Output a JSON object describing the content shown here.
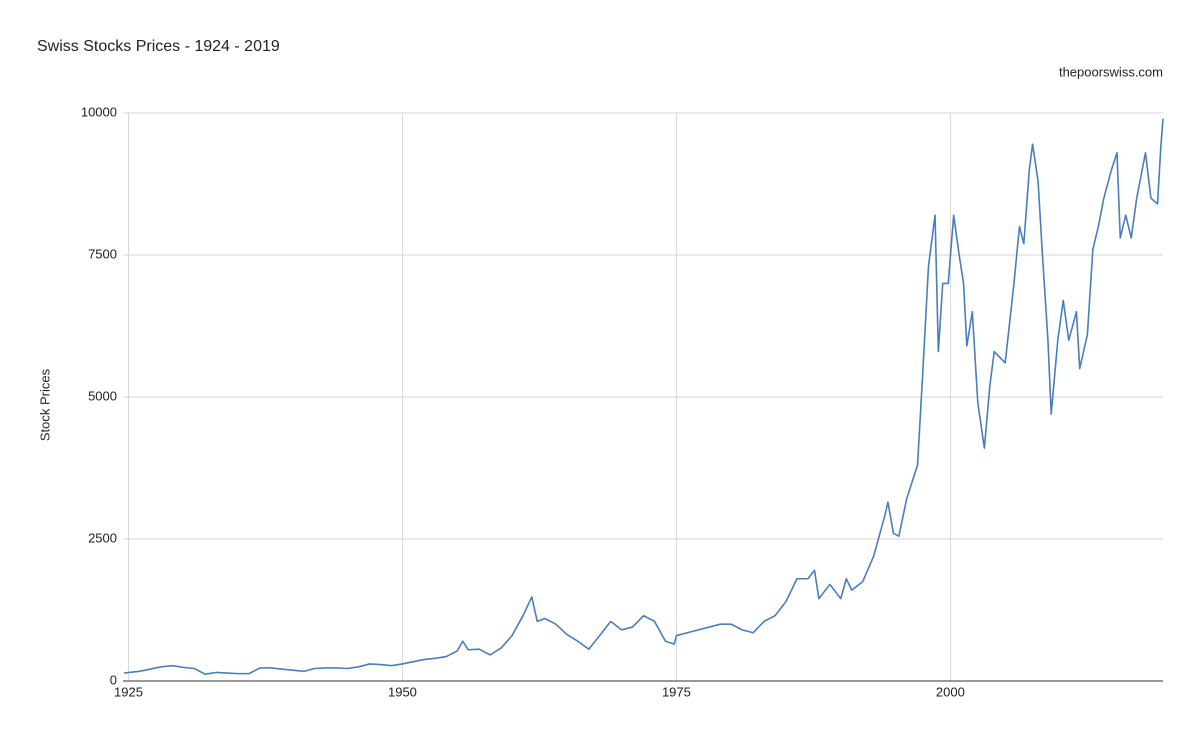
{
  "chart_data": {
    "type": "line",
    "title": "Swiss Stocks Prices - 1924 - 2019",
    "subtitle": "thepoorswiss.com",
    "y_label": "Stock Prices",
    "xlim": [
      1924.5,
      2019.4
    ],
    "xticks": [
      1925,
      1950,
      1975,
      2000
    ],
    "ylim": [
      0,
      10000
    ],
    "yticks": [
      0,
      2500,
      5000,
      7500,
      10000
    ],
    "grid": true,
    "series": [
      {
        "color": "#4a7ebb",
        "x": [
          1924.6,
          1926,
          1928,
          1929,
          1930,
          1931,
          1932,
          1933,
          1934,
          1935,
          1936,
          1937,
          1938,
          1939,
          1940,
          1941,
          1942,
          1943,
          1944,
          1945,
          1946,
          1947,
          1948,
          1949,
          1950,
          1951,
          1952,
          1953,
          1954,
          1955,
          1955.5,
          1956,
          1957,
          1958,
          1959,
          1960,
          1961,
          1961.8,
          1962.3,
          1963,
          1964,
          1965,
          1966,
          1967,
          1968,
          1969,
          1970,
          1971,
          1972,
          1973,
          1974,
          1974.8,
          1975,
          1976,
          1977,
          1978,
          1979,
          1980,
          1981,
          1982,
          1983,
          1984,
          1985,
          1986,
          1987,
          1987.6,
          1988,
          1989,
          1990,
          1990.5,
          1991,
          1992,
          1993,
          1994,
          1994.3,
          1994.8,
          1995.3,
          1996,
          1997,
          1997.5,
          1998,
          1998.6,
          1998.9,
          1999.3,
          1999.8,
          2000.3,
          2000.8,
          2001.2,
          2001.5,
          2002,
          2002.5,
          2003.1,
          2003.6,
          2004,
          2005,
          2005.8,
          2006.3,
          2006.7,
          2007.2,
          2007.5,
          2008,
          2008.4,
          2008.9,
          2009.2,
          2009.8,
          2010.3,
          2010.8,
          2011.5,
          2011.8,
          2012.5,
          2013,
          2013.5,
          2014,
          2014.7,
          2015.2,
          2015.5,
          2016,
          2016.5,
          2017,
          2017.8,
          2018.3,
          2018.9,
          2019.2,
          2019.4
        ],
        "values": [
          140,
          170,
          250,
          270,
          240,
          220,
          120,
          150,
          140,
          130,
          130,
          230,
          230,
          210,
          190,
          170,
          220,
          230,
          230,
          220,
          250,
          300,
          290,
          270,
          300,
          340,
          380,
          400,
          430,
          530,
          700,
          550,
          560,
          460,
          580,
          800,
          1150,
          1480,
          1050,
          1100,
          1000,
          820,
          700,
          560,
          800,
          1050,
          900,
          950,
          1150,
          1050,
          700,
          650,
          800,
          850,
          900,
          950,
          1000,
          1000,
          900,
          850,
          1050,
          1150,
          1400,
          1800,
          1800,
          1950,
          1450,
          1700,
          1450,
          1800,
          1600,
          1750,
          2200,
          2900,
          3150,
          2600,
          2550,
          3200,
          3800,
          5500,
          7300,
          8200,
          5800,
          7000,
          7000,
          8200,
          7500,
          7000,
          5900,
          6500,
          4900,
          4100,
          5200,
          5800,
          5600,
          7000,
          8000,
          7700,
          9000,
          9450,
          8800,
          7500,
          6000,
          4700,
          6000,
          6700,
          6000,
          6500,
          5500,
          6100,
          7600,
          8000,
          8500,
          9000,
          9300,
          7800,
          8200,
          7800,
          8500,
          9300,
          8500,
          8400,
          9400,
          9900
        ]
      }
    ]
  }
}
